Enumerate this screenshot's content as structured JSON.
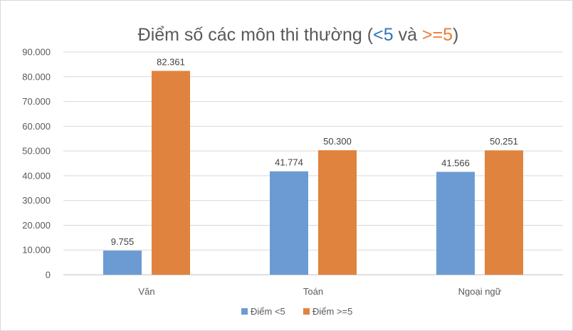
{
  "chart_data": {
    "type": "bar",
    "title": {
      "prefix": "Điểm số các môn thi thường (",
      "part1": "<5",
      "middle": " và ",
      "part2": ">=5",
      "suffix": ")"
    },
    "categories": [
      "Văn",
      "Toán",
      "Ngoại ngữ"
    ],
    "series": [
      {
        "name": "Điểm <5",
        "color": "#6b9bd2",
        "values": [
          9755,
          41774,
          41566
        ],
        "labels": [
          "9.755",
          "41.774",
          "41.566"
        ]
      },
      {
        "name": "Điểm >=5",
        "color": "#e0833f",
        "values": [
          82361,
          50300,
          50251
        ],
        "labels": [
          "82.361",
          "50.300",
          "50.251"
        ]
      }
    ],
    "ylim": [
      0,
      90000
    ],
    "yticks": [
      0,
      10000,
      20000,
      30000,
      40000,
      50000,
      60000,
      70000,
      80000,
      90000
    ],
    "ytick_labels": [
      "0",
      "10.000",
      "20.000",
      "30.000",
      "40.000",
      "50.000",
      "60.000",
      "70.000",
      "80.000",
      "90.000"
    ],
    "grid": true,
    "legend": "bottom",
    "title_colors": {
      "part1": "#2e75b6",
      "part2": "#ed7d31"
    }
  }
}
